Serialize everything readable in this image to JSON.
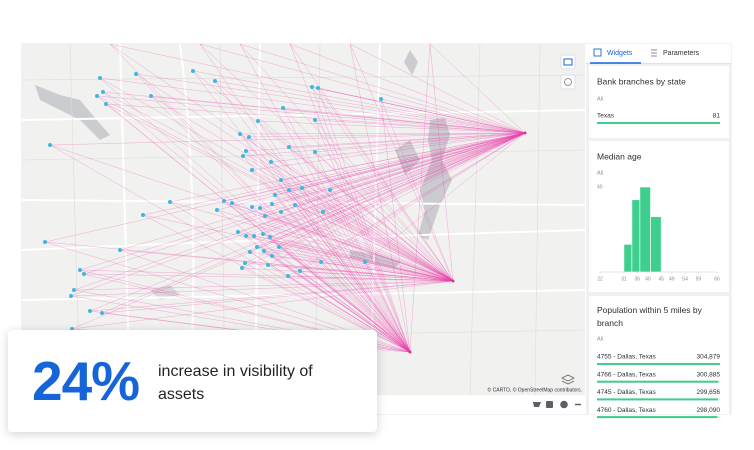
{
  "tabs": [
    "Widgets",
    "Parameters"
  ],
  "map": {
    "attribution": "© CARTO, © OpenStreetMap contributors."
  },
  "bank_widget": {
    "title": "Bank branches by state",
    "filter": "All",
    "categories": [
      "Texas"
    ],
    "values": [
      81
    ]
  },
  "chart_data": {
    "type": "histogram",
    "title": "Median age",
    "subtitle": "All",
    "bins": [
      31,
      34,
      37,
      41,
      45
    ],
    "values": [
      13,
      34,
      40,
      26
    ],
    "color": "#3ecf8e",
    "xlim": [
      22,
      66
    ],
    "xticks": [
      22,
      31,
      36,
      40,
      45,
      49,
      54,
      59,
      66
    ],
    "ylim": [
      0,
      40
    ],
    "yticks": [
      40
    ]
  },
  "population_widget": {
    "title": "Population within 5 miles by branch",
    "filter": "All",
    "rows": [
      {
        "name": "4755 - Dallas, Texas",
        "value": 304879,
        "value_label": "304,879"
      },
      {
        "name": "4766 - Dallas, Texas",
        "value": 300885,
        "value_label": "300,885"
      },
      {
        "name": "4745 - Dallas, Texas",
        "value": 299656,
        "value_label": "299,656"
      },
      {
        "name": "4760 - Dallas, Texas",
        "value": 298090,
        "value_label": "298,090"
      }
    ]
  },
  "callout": {
    "value": "24%",
    "text": "increase in visibility of assets"
  }
}
